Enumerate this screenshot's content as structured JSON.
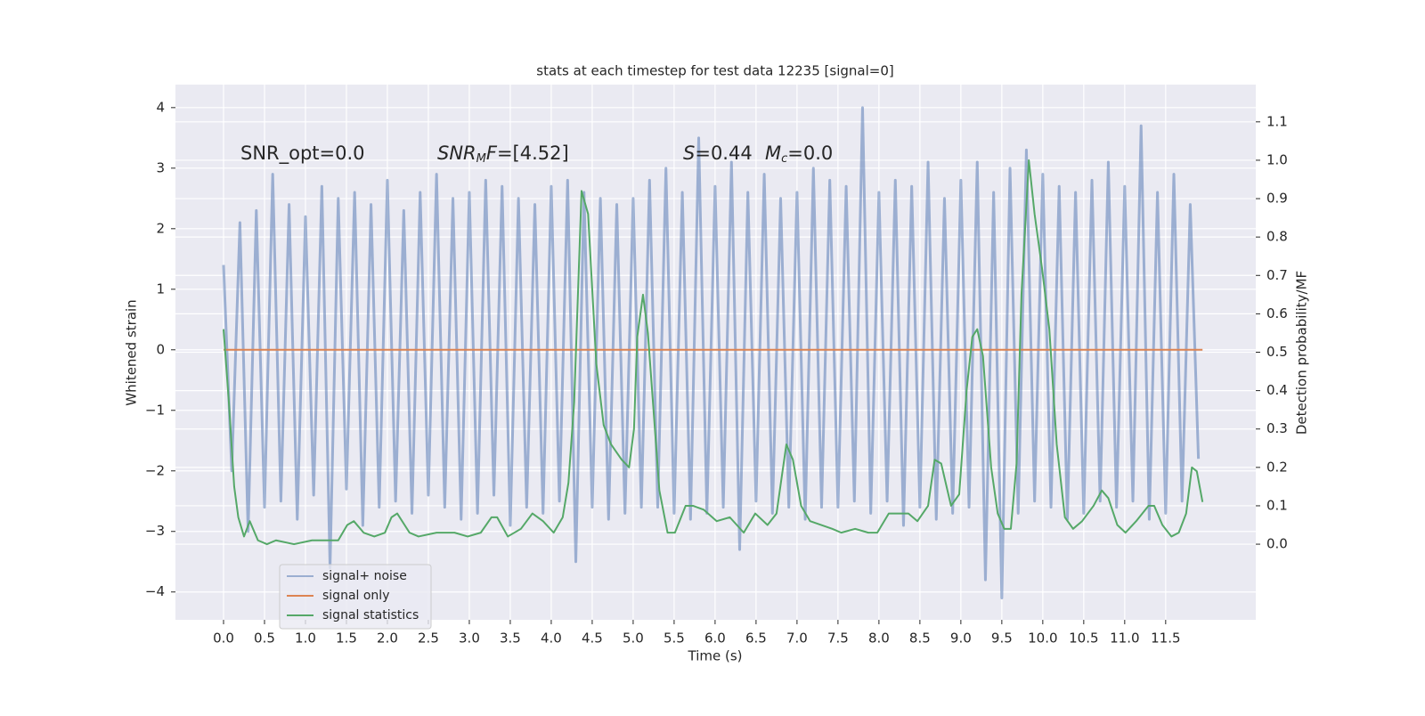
{
  "chart_data": {
    "type": "line",
    "title": "stats at each timestep for test data 12235 [signal=0]",
    "xlabel": "Time (s)",
    "ylabel": "Whitened strain",
    "y2label": "Detection probability/MF",
    "xlim": [
      -0.587,
      12.6
    ],
    "ylim": [
      -4.46,
      4.38
    ],
    "y2lim": [
      -0.197,
      1.197
    ],
    "grid": true,
    "legend": "lower left",
    "xticks": [
      {
        "value": 0,
        "label": "0.0"
      },
      {
        "value": 0.5,
        "label": "0.5"
      },
      {
        "value": 1,
        "label": "1.0"
      },
      {
        "value": 1.5,
        "label": "1.5"
      },
      {
        "value": 2,
        "label": "2.0"
      },
      {
        "value": 2.5,
        "label": "2.5"
      },
      {
        "value": 3,
        "label": "3.0"
      },
      {
        "value": 3.5,
        "label": "3.5"
      },
      {
        "value": 4,
        "label": "4.0"
      },
      {
        "value": 4.5,
        "label": "4.5"
      },
      {
        "value": 5,
        "label": "5.0"
      },
      {
        "value": 5.5,
        "label": "5.5"
      },
      {
        "value": 6,
        "label": "6.0"
      },
      {
        "value": 6.5,
        "label": "6.5"
      },
      {
        "value": 7,
        "label": "7.0"
      },
      {
        "value": 7.5,
        "label": "7.5"
      },
      {
        "value": 8,
        "label": "8.0"
      },
      {
        "value": 8.5,
        "label": "8.5"
      },
      {
        "value": 9,
        "label": "9.0"
      },
      {
        "value": 9.5,
        "label": "9.5"
      },
      {
        "value": 10,
        "label": "10.0"
      },
      {
        "value": 10.5,
        "label": "10.5"
      },
      {
        "value": 11,
        "label": "11.0"
      },
      {
        "value": 11.5,
        "label": "11.5"
      }
    ],
    "yticks": [
      4,
      3,
      2,
      1,
      0,
      {
        "value": -1,
        "label": "−1"
      },
      {
        "value": -2,
        "label": "−2"
      },
      {
        "value": -3,
        "label": "−3"
      },
      {
        "value": -4,
        "label": "−4"
      }
    ],
    "y2ticks": [
      {
        "value": 1.1,
        "label": "1.1"
      },
      {
        "value": 1,
        "label": "1.0"
      },
      {
        "value": 0.9,
        "label": "0.9"
      },
      {
        "value": 0.8,
        "label": "0.8"
      },
      {
        "value": 0.7,
        "label": "0.7"
      },
      {
        "value": 0.6,
        "label": "0.6"
      },
      {
        "value": 0.5,
        "label": "0.5"
      },
      {
        "value": 0.4,
        "label": "0.4"
      },
      {
        "value": 0.3,
        "label": "0.3"
      },
      {
        "value": 0.2,
        "label": "0.2"
      },
      {
        "value": 0.1,
        "label": "0.1"
      },
      {
        "value": 0,
        "label": "0.0"
      }
    ],
    "annotations": [
      [
        {
          "text": "SNR_opt=0.0"
        }
      ],
      [
        {
          "text": "SNR",
          "style": "italic"
        },
        {
          "text": "M",
          "style": "italic",
          "baseline": "sub"
        },
        {
          "text": "F",
          "style": "italic"
        },
        {
          "text": "=[4.52]"
        }
      ],
      [
        {
          "text": "S",
          "style": "italic"
        },
        {
          "text": "=0.44"
        }
      ],
      [
        {
          "text": "M",
          "style": "italic"
        },
        {
          "text": "c",
          "style": "italic",
          "baseline": "sub"
        },
        {
          "text": "=0.0"
        }
      ]
    ],
    "series": [
      {
        "name": "signal+ noise",
        "color": "#4c72b0",
        "opacity": 0.5,
        "x": [
          0,
          0.1,
          0.2,
          0.3,
          0.4,
          0.5,
          0.6,
          0.7,
          0.8,
          0.9,
          1,
          1.1,
          1.2,
          1.3,
          1.4,
          1.5,
          1.6,
          1.7,
          1.8,
          1.9,
          2,
          2.1,
          2.2,
          2.3,
          2.4,
          2.5,
          2.6,
          2.7,
          2.8,
          2.9,
          3,
          3.1,
          3.2,
          3.3,
          3.4,
          3.5,
          3.6,
          3.7,
          3.8,
          3.9,
          4,
          4.1,
          4.2,
          4.3,
          4.4,
          4.5,
          4.6,
          4.7,
          4.8,
          4.9,
          5,
          5.1,
          5.2,
          5.3,
          5.4,
          5.5,
          5.6,
          5.7,
          5.8,
          5.9,
          6,
          6.1,
          6.2,
          6.3,
          6.4,
          6.5,
          6.6,
          6.7,
          6.8,
          6.9,
          7,
          7.1,
          7.2,
          7.3,
          7.4,
          7.5,
          7.6,
          7.7,
          7.8,
          7.9,
          8,
          8.1,
          8.2,
          8.3,
          8.4,
          8.5,
          8.6,
          8.7,
          8.8,
          8.9,
          9,
          9.1,
          9.2,
          9.3,
          9.4,
          9.5,
          9.6,
          9.7,
          9.8,
          9.9,
          10,
          10.1,
          10.2,
          10.3,
          10.4,
          10.5,
          10.6,
          10.7,
          10.8,
          10.9,
          11,
          11.1,
          11.2,
          11.3,
          11.4,
          11.5,
          11.6,
          11.7,
          11.8,
          11.9
        ],
        "values": [
          1.4,
          -2.0,
          2.1,
          -3.0,
          2.3,
          -2.6,
          2.9,
          -2.5,
          2.4,
          -2.8,
          2.2,
          -2.4,
          2.7,
          -3.6,
          2.5,
          -2.3,
          2.6,
          -2.9,
          2.4,
          -2.6,
          2.8,
          -2.5,
          2.3,
          -2.7,
          2.6,
          -2.4,
          2.9,
          -2.6,
          2.5,
          -2.8,
          2.6,
          -2.7,
          2.8,
          -2.4,
          2.7,
          -2.9,
          2.5,
          -2.6,
          2.4,
          -2.7,
          2.7,
          -2.5,
          2.8,
          -3.5,
          2.6,
          -2.6,
          2.5,
          -2.8,
          2.4,
          -2.7,
          2.5,
          -2.6,
          2.8,
          -2.6,
          3.0,
          -2.7,
          2.6,
          -2.8,
          3.5,
          -2.7,
          2.7,
          -2.6,
          3.1,
          -3.3,
          2.6,
          -2.5,
          2.9,
          -2.7,
          2.5,
          -2.6,
          2.6,
          -2.8,
          3.0,
          -2.6,
          2.8,
          -2.6,
          2.7,
          -2.5,
          4.0,
          -2.7,
          2.6,
          -2.5,
          2.8,
          -2.9,
          2.7,
          -2.6,
          3.1,
          -2.8,
          2.5,
          -2.7,
          2.8,
          -2.6,
          3.1,
          -3.8,
          2.6,
          -4.1,
          3.0,
          -2.7,
          3.3,
          -2.5,
          2.9,
          -2.6,
          2.7,
          -2.8,
          2.6,
          -2.7,
          2.8,
          -2.5,
          3.1,
          -2.6,
          2.7,
          -2.5,
          3.7,
          -2.8,
          2.6,
          -2.7,
          2.9,
          -2.5,
          2.4,
          -1.8
        ]
      },
      {
        "name": "signal only",
        "color": "#dd8452",
        "x": [
          0,
          11.95
        ],
        "values": [
          0,
          0
        ]
      },
      {
        "name": "signal statistics",
        "color": "#55a868",
        "axis": "y2",
        "x": [
          0,
          0.065,
          0.13,
          0.18,
          0.25,
          0.32,
          0.42,
          0.53,
          0.64,
          0.86,
          1.08,
          1.29,
          1.4,
          1.51,
          1.59,
          1.71,
          1.84,
          1.97,
          2.05,
          2.12,
          2.27,
          2.38,
          2.6,
          2.82,
          2.98,
          3.14,
          3.27,
          3.34,
          3.47,
          3.63,
          3.77,
          3.9,
          4.03,
          4.14,
          4.21,
          4.28,
          4.37,
          4.45,
          4.55,
          4.64,
          4.73,
          4.86,
          4.95,
          5.01,
          5.05,
          5.12,
          5.18,
          5.32,
          5.42,
          5.51,
          5.64,
          5.73,
          5.86,
          6.02,
          6.18,
          6.35,
          6.49,
          6.64,
          6.75,
          6.87,
          6.95,
          7.05,
          7.16,
          7.43,
          7.54,
          7.71,
          7.87,
          7.98,
          8.12,
          8.25,
          8.36,
          8.47,
          8.6,
          8.68,
          8.76,
          8.88,
          8.98,
          9.07,
          9.14,
          9.2,
          9.27,
          9.37,
          9.45,
          9.53,
          9.61,
          9.68,
          9.74,
          9.83,
          9.9,
          9.99,
          10.08,
          10.17,
          10.27,
          10.37,
          10.48,
          10.62,
          10.72,
          10.8,
          10.91,
          11.01,
          11.14,
          11.29,
          11.36,
          11.46,
          11.57,
          11.66,
          11.75,
          11.82,
          11.88,
          11.95
        ],
        "values": [
          0.56,
          0.37,
          0.15,
          0.07,
          0.02,
          0.06,
          0.01,
          0.0,
          0.01,
          0.0,
          0.01,
          0.01,
          0.01,
          0.05,
          0.06,
          0.03,
          0.02,
          0.03,
          0.07,
          0.08,
          0.03,
          0.02,
          0.03,
          0.03,
          0.02,
          0.03,
          0.07,
          0.07,
          0.02,
          0.04,
          0.08,
          0.06,
          0.03,
          0.07,
          0.16,
          0.37,
          0.92,
          0.86,
          0.47,
          0.31,
          0.26,
          0.22,
          0.2,
          0.3,
          0.54,
          0.65,
          0.55,
          0.14,
          0.03,
          0.03,
          0.1,
          0.1,
          0.09,
          0.06,
          0.07,
          0.03,
          0.08,
          0.05,
          0.08,
          0.26,
          0.22,
          0.1,
          0.06,
          0.04,
          0.03,
          0.04,
          0.03,
          0.03,
          0.08,
          0.08,
          0.08,
          0.06,
          0.1,
          0.22,
          0.21,
          0.1,
          0.13,
          0.4,
          0.54,
          0.56,
          0.49,
          0.2,
          0.08,
          0.04,
          0.04,
          0.21,
          0.65,
          1.0,
          0.86,
          0.72,
          0.56,
          0.26,
          0.07,
          0.04,
          0.06,
          0.1,
          0.14,
          0.12,
          0.05,
          0.03,
          0.06,
          0.1,
          0.1,
          0.05,
          0.02,
          0.03,
          0.08,
          0.2,
          0.19,
          0.11
        ]
      }
    ]
  }
}
